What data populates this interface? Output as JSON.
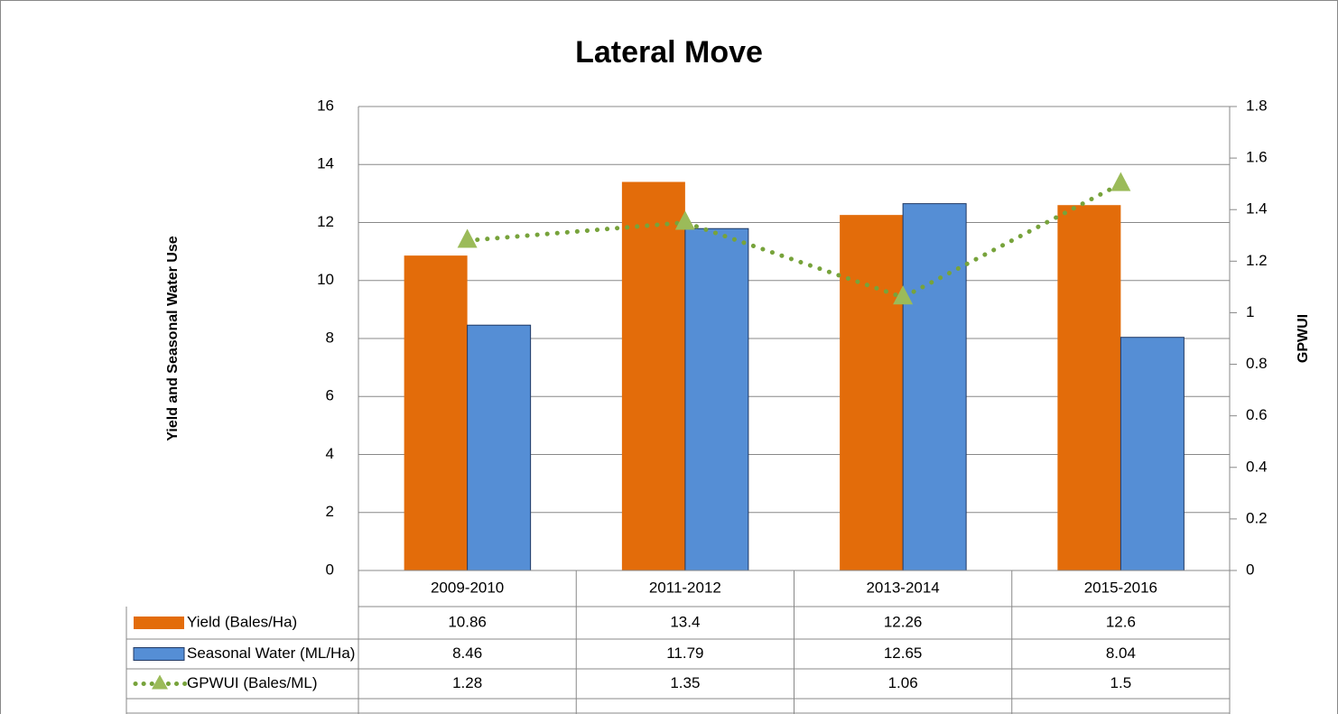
{
  "chart_data": {
    "type": "bar",
    "title": "Lateral Move",
    "y_label": "Yield and Seasonal Water Use",
    "y2_label": "GPWUI",
    "categories": [
      "2009-2010",
      "2011-2012",
      "2013-2014",
      "2015-2016"
    ],
    "series": [
      {
        "name": "Yield (Bales/Ha)",
        "color": "#e36c0a",
        "type": "bar",
        "values": [
          10.86,
          13.4,
          12.26,
          12.6
        ]
      },
      {
        "name": "Seasonal Water (ML/Ha)",
        "color": "#558ed5",
        "type": "bar",
        "values": [
          8.46,
          11.79,
          12.65,
          8.04
        ]
      },
      {
        "name": "GPWUI (Bales/ML)",
        "color": "#77a33b",
        "type": "line",
        "axis": "y2",
        "values": [
          1.28,
          1.35,
          1.06,
          1.5
        ]
      }
    ],
    "ylim": [
      0,
      16
    ],
    "yticks": [
      0,
      2,
      4,
      6,
      8,
      10,
      12,
      14,
      16
    ],
    "y2lim": [
      0,
      1.8
    ],
    "y2ticks": [
      0,
      0.2,
      0.4,
      0.6,
      0.8,
      1,
      1.2,
      1.4,
      1.6,
      1.8
    ],
    "grid": true,
    "data_table": true
  }
}
